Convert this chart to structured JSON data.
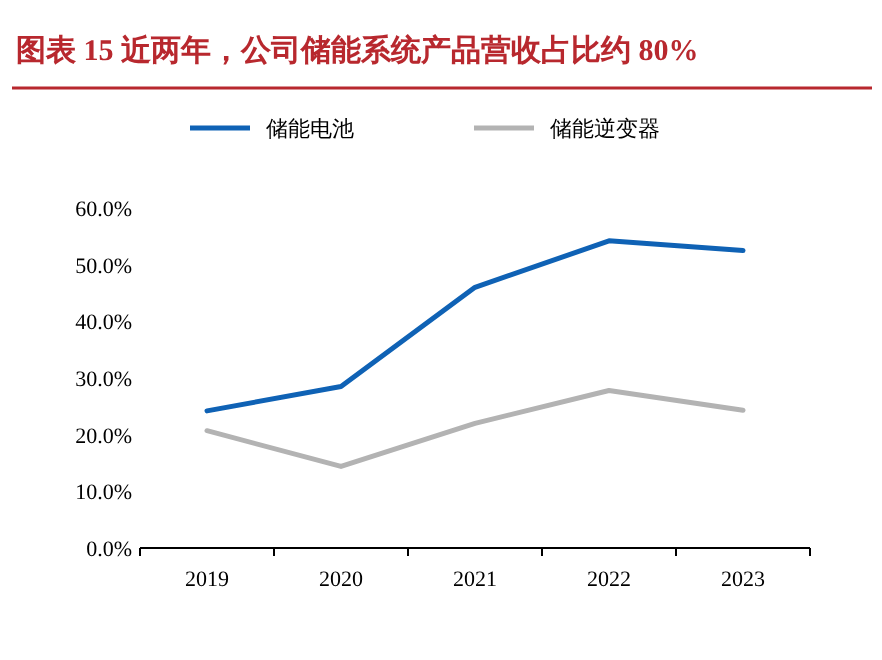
{
  "chart_data": {
    "type": "line",
    "title": "图表 15   近两年，公司储能系统产品营收占比约 80%",
    "categories": [
      "2019",
      "2020",
      "2021",
      "2022",
      "2023"
    ],
    "series": [
      {
        "name": "储能电池",
        "color": "#0f62b5",
        "values": [
          24.2,
          28.5,
          46.0,
          54.2,
          52.5
        ]
      },
      {
        "name": "储能逆变器",
        "color": "#b3b3b3",
        "values": [
          20.7,
          14.4,
          22.0,
          27.8,
          24.3
        ]
      }
    ],
    "ylim": [
      0,
      60
    ],
    "yticks": [
      {
        "value": 0,
        "label": "0.0%"
      },
      {
        "value": 10,
        "label": "10.0%"
      },
      {
        "value": 20,
        "label": "20.0%"
      },
      {
        "value": 30,
        "label": "30.0%"
      },
      {
        "value": 40,
        "label": "40.0%"
      },
      {
        "value": 50,
        "label": "50.0%"
      },
      {
        "value": 60,
        "label": "60.0%"
      }
    ],
    "legend": "top",
    "grid": false,
    "marker": "none",
    "line_style": "solid"
  }
}
